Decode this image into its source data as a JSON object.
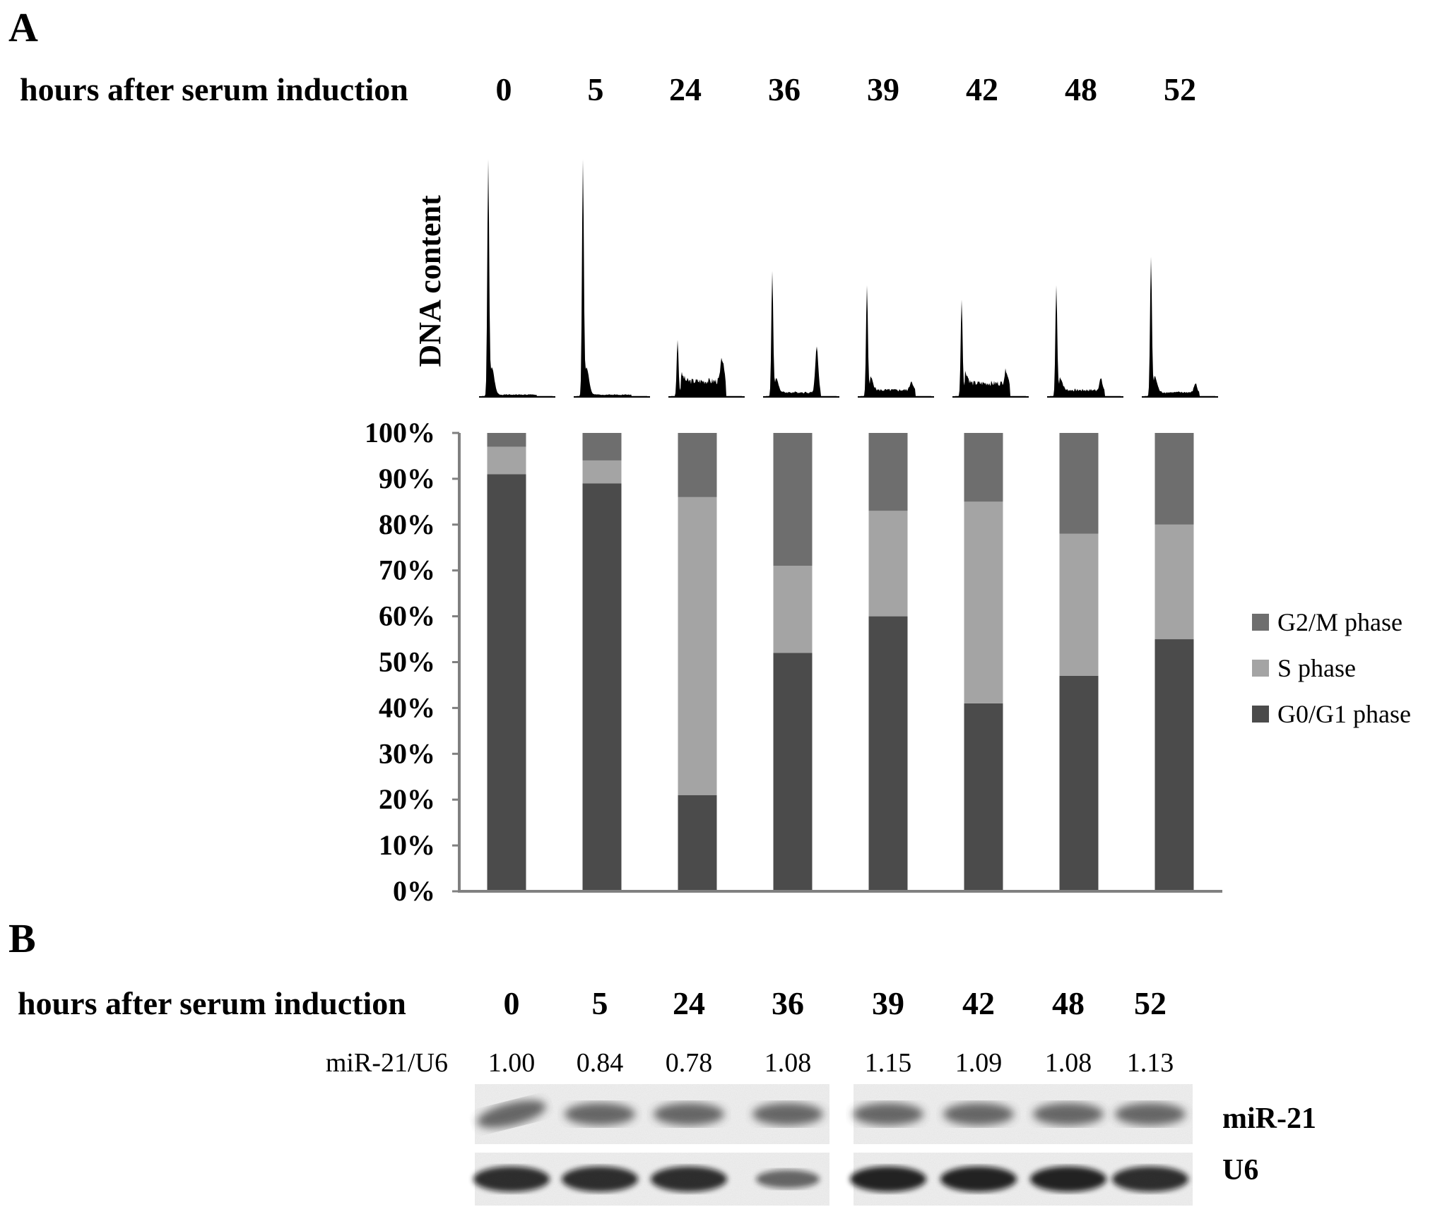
{
  "panel_a": {
    "label": "A",
    "header_label": "hours after serum induction",
    "histogram_ylabel": "DNA content"
  },
  "panel_b": {
    "label": "B",
    "header_label": "hours after serum induction",
    "hours": [
      "0",
      "5",
      "24",
      "36",
      "39",
      "42",
      "48",
      "52"
    ],
    "ratio_label": "miR-21/U6",
    "ratios": [
      "1.00",
      "0.84",
      "0.78",
      "1.08",
      "1.15",
      "1.09",
      "1.08",
      "1.13"
    ],
    "band_labels": [
      "miR-21",
      "U6"
    ]
  },
  "colors": {
    "g0g1": "#4b4b4b",
    "s": "#a4a4a4",
    "g2m": "#6e6e6e",
    "histogram": "#000000",
    "axis": "#808080",
    "blot_bg": "#f0f0f0"
  },
  "chart_data": {
    "type": "bar",
    "stacked": true,
    "categories": [
      "0",
      "5",
      "24",
      "36",
      "39",
      "42",
      "48",
      "52"
    ],
    "series": [
      {
        "name": "G0/G1 phase",
        "values": [
          91,
          89,
          21,
          52,
          60,
          41,
          47,
          55
        ]
      },
      {
        "name": "S phase",
        "values": [
          6,
          5,
          65,
          19,
          23,
          44,
          31,
          25
        ]
      },
      {
        "name": "G2/M phase",
        "values": [
          3,
          6,
          14,
          29,
          17,
          15,
          22,
          20
        ]
      }
    ],
    "yticks": [
      "0%",
      "10%",
      "20%",
      "30%",
      "40%",
      "50%",
      "60%",
      "70%",
      "80%",
      "90%",
      "100%"
    ],
    "ylim": [
      0,
      100
    ],
    "grid": false,
    "legend_position": "right",
    "histogram_g1_peak_relative": [
      1.0,
      1.0,
      0.24,
      0.53,
      0.47,
      0.41,
      0.47,
      0.59
    ],
    "histogram_g2_peak_relative": [
      0.0,
      0.0,
      0.1,
      0.2,
      0.04,
      0.06,
      0.05,
      0.04
    ],
    "histogram_s_plateau_relative": [
      0.01,
      0.01,
      0.07,
      0.02,
      0.03,
      0.06,
      0.03,
      0.02
    ]
  }
}
